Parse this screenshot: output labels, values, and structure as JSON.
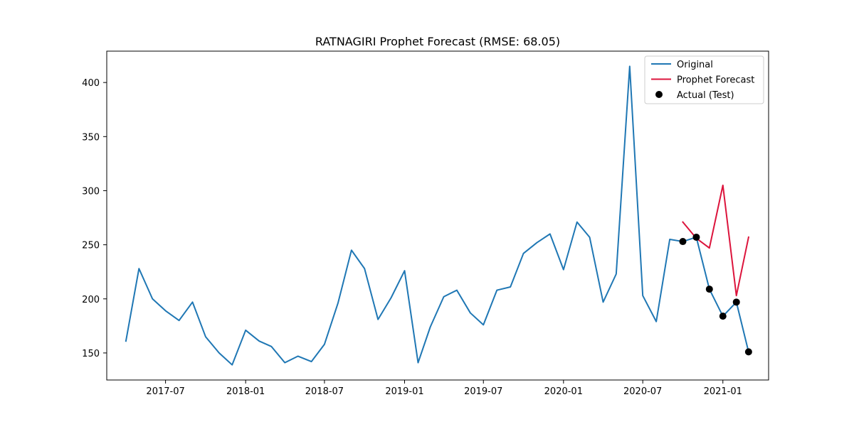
{
  "chart_data": {
    "type": "line",
    "title": "RATNAGIRI Prophet Forecast (RMSE: 68.05)",
    "xlabel": "",
    "ylabel": "",
    "x_tick_labels": [
      "2017-07",
      "2018-01",
      "2018-07",
      "2019-01",
      "2019-07",
      "2020-01",
      "2020-07",
      "2021-01"
    ],
    "x_tick_dates": [
      "2017-07-01",
      "2018-01-01",
      "2018-07-01",
      "2019-01-01",
      "2019-07-01",
      "2020-01-01",
      "2020-07-01",
      "2021-01-01"
    ],
    "y_ticks": [
      150,
      200,
      250,
      300,
      350,
      400
    ],
    "xlim": [
      "2017-02-16",
      "2021-04-16"
    ],
    "ylim": [
      125,
      429
    ],
    "grid": false,
    "legend_position": "top-right",
    "series": [
      {
        "name": "Original",
        "kind": "line",
        "color": "#1f77b4",
        "x": [
          "2017-04-01",
          "2017-05-01",
          "2017-06-01",
          "2017-07-01",
          "2017-08-01",
          "2017-09-01",
          "2017-10-01",
          "2017-11-01",
          "2017-12-01",
          "2018-01-01",
          "2018-02-01",
          "2018-03-01",
          "2018-04-01",
          "2018-05-01",
          "2018-06-01",
          "2018-07-01",
          "2018-08-01",
          "2018-09-01",
          "2018-10-01",
          "2018-11-01",
          "2018-12-01",
          "2019-01-01",
          "2019-02-01",
          "2019-03-01",
          "2019-04-01",
          "2019-05-01",
          "2019-06-01",
          "2019-07-01",
          "2019-08-01",
          "2019-09-01",
          "2019-10-01",
          "2019-11-01",
          "2019-12-01",
          "2020-01-01",
          "2020-02-01",
          "2020-03-01",
          "2020-04-01",
          "2020-05-01",
          "2020-06-01",
          "2020-07-01",
          "2020-08-01",
          "2020-09-01",
          "2020-10-01",
          "2020-11-01",
          "2020-12-01",
          "2021-01-01",
          "2021-02-01",
          "2021-03-01"
        ],
        "values": [
          161,
          228,
          200,
          189,
          180,
          197,
          165,
          150,
          139,
          171,
          161,
          156,
          141,
          147,
          142,
          158,
          196,
          245,
          228,
          181,
          201,
          226,
          141,
          174,
          202,
          208,
          187,
          176,
          208,
          211,
          242,
          252,
          260,
          227,
          271,
          257,
          197,
          223,
          415,
          203,
          179,
          255,
          253,
          257,
          209,
          184,
          197,
          151
        ]
      },
      {
        "name": "Prophet Forecast",
        "kind": "line",
        "color": "#dc143c",
        "x": [
          "2020-10-01",
          "2020-11-01",
          "2020-12-01",
          "2021-01-01",
          "2021-02-01",
          "2021-03-01"
        ],
        "values": [
          271,
          256,
          247,
          305,
          203,
          257
        ]
      },
      {
        "name": "Actual (Test)",
        "kind": "scatter",
        "color": "#000000",
        "x": [
          "2020-10-01",
          "2020-11-01",
          "2020-12-01",
          "2021-01-01",
          "2021-02-01",
          "2021-03-01"
        ],
        "values": [
          253,
          257,
          209,
          184,
          197,
          151
        ]
      }
    ]
  }
}
